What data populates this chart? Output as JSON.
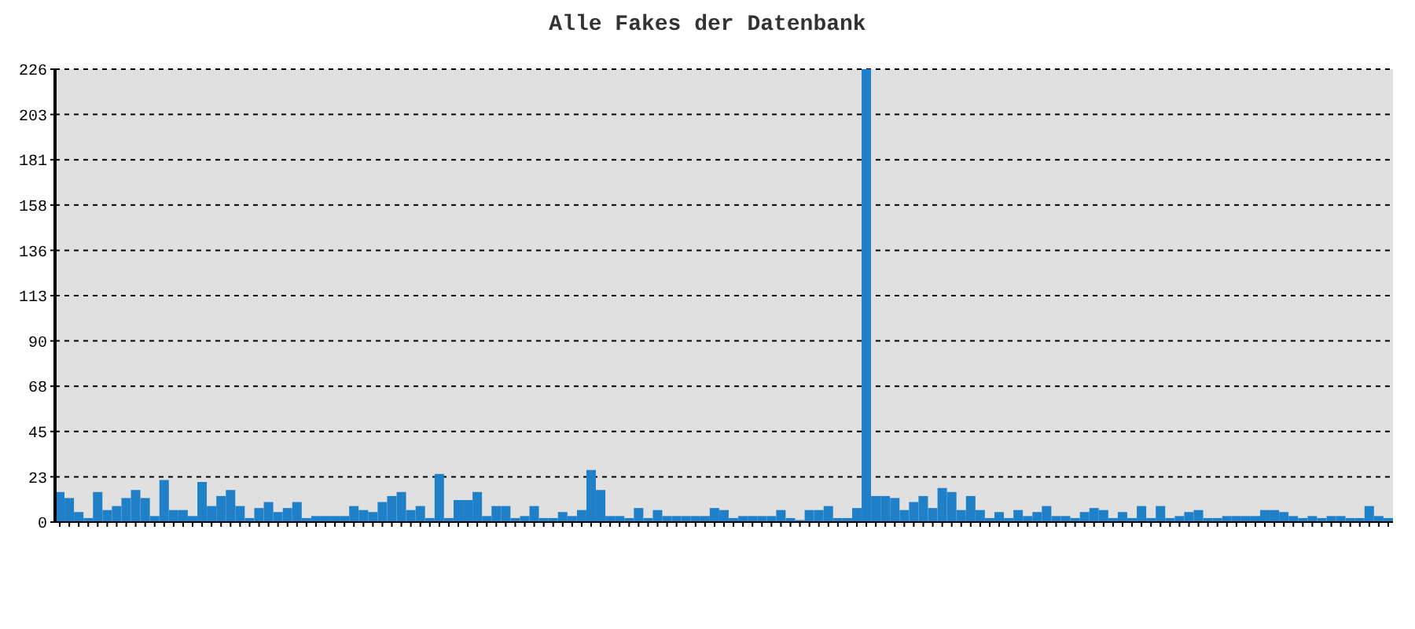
{
  "chart_data": {
    "type": "bar",
    "title": "Alle Fakes der Datenbank",
    "categories": [
      null,
      null,
      null,
      null,
      null,
      null,
      null,
      null,
      null,
      null,
      null,
      null,
      null,
      null,
      null,
      null,
      null,
      null,
      null,
      null,
      null,
      null,
      null,
      null,
      null,
      null,
      null,
      null,
      null,
      null,
      null,
      null,
      null,
      null,
      null,
      null,
      null,
      null,
      null,
      null,
      null,
      null,
      null,
      null,
      null,
      null,
      null,
      null,
      null,
      null,
      null,
      null,
      null,
      null,
      null,
      null,
      null,
      null,
      null,
      null,
      null,
      null,
      null,
      null,
      null,
      null,
      null,
      null,
      null,
      null,
      null,
      null,
      null,
      null,
      null,
      null,
      null,
      null,
      null,
      null,
      null,
      null,
      null,
      null,
      null,
      null,
      null,
      null,
      null,
      null,
      null,
      null,
      null,
      null,
      null,
      null,
      null,
      null,
      null,
      null,
      null,
      null,
      null,
      null,
      null,
      null,
      null,
      null,
      null,
      null,
      null,
      null,
      null,
      null,
      null,
      null,
      null,
      null,
      null,
      null,
      null,
      null,
      null,
      null,
      null,
      null,
      null,
      null,
      null,
      null,
      null,
      null,
      null,
      null,
      null,
      null,
      null,
      null,
      null,
      null,
      null
    ],
    "values": [
      15,
      12,
      5,
      2,
      15,
      6,
      8,
      12,
      16,
      12,
      3,
      21,
      6,
      6,
      3,
      20,
      8,
      13,
      16,
      8,
      2,
      7,
      10,
      5,
      7,
      10,
      2,
      3,
      3,
      3,
      3,
      8,
      6,
      5,
      10,
      13,
      15,
      6,
      8,
      2,
      24,
      2,
      11,
      11,
      15,
      3,
      8,
      8,
      2,
      3,
      8,
      2,
      2,
      5,
      3,
      6,
      26,
      16,
      3,
      3,
      2,
      7,
      2,
      6,
      3,
      3,
      3,
      3,
      3,
      7,
      6,
      2,
      3,
      3,
      3,
      3,
      6,
      2,
      1,
      6,
      6,
      8,
      2,
      2,
      7,
      226,
      13,
      13,
      12,
      6,
      10,
      13,
      7,
      17,
      15,
      6,
      13,
      6,
      2,
      5,
      2,
      6,
      3,
      5,
      8,
      3,
      3,
      2,
      5,
      7,
      6,
      2,
      5,
      2,
      8,
      2,
      8,
      2,
      3,
      5,
      6,
      2,
      2,
      3,
      3,
      3,
      3,
      6,
      6,
      5,
      3,
      2,
      3,
      2,
      3,
      3,
      2,
      2,
      8,
      3,
      2
    ],
    "color": "#1f80c8",
    "ylim": [
      0,
      226
    ],
    "yticks": [
      0,
      {
        "value": 22.6,
        "label": "23"
      },
      {
        "value": 45.2,
        "label": "45"
      },
      {
        "value": 67.8,
        "label": "68"
      },
      {
        "value": 90.4,
        "label": "90"
      },
      {
        "value": 113,
        "label": "113"
      },
      {
        "value": 135.6,
        "label": "136"
      },
      {
        "value": 158.2,
        "label": "158"
      },
      {
        "value": 180.8,
        "label": "181"
      },
      {
        "value": 203.4,
        "label": "203"
      },
      {
        "value": 226,
        "label": "226"
      }
    ],
    "grid": "y",
    "legend": false
  }
}
